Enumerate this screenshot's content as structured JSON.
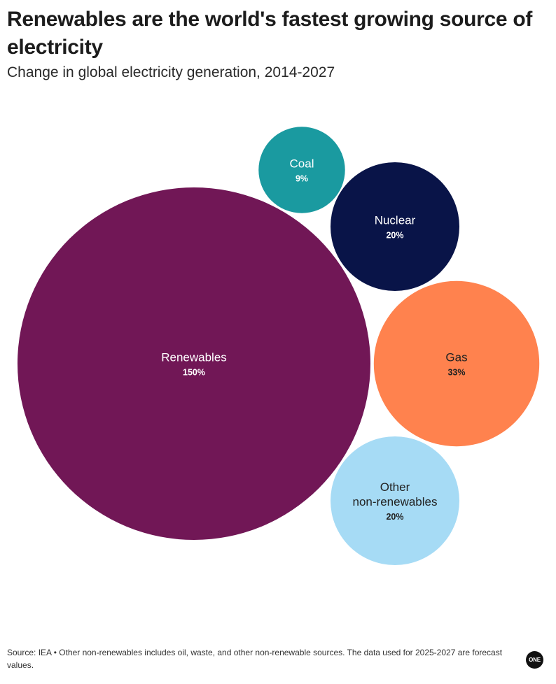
{
  "header": {
    "title": "Renewables are the world's fastest growing source of electricity",
    "subtitle": "Change in global electricity generation, 2014-2027"
  },
  "chart_data": {
    "type": "bubble",
    "title": "Renewables are the world's fastest growing source of electricity",
    "subtitle": "Change in global electricity generation, 2014-2027",
    "unit": "%",
    "series": [
      {
        "name": "Renewables",
        "label_lines": [
          "Renewables"
        ],
        "value": 150,
        "value_label": "150%",
        "color": "#711756",
        "text_color": "#ffffff"
      },
      {
        "name": "Coal",
        "label_lines": [
          "Coal"
        ],
        "value": 9,
        "value_label": "9%",
        "color": "#1a9aa0",
        "text_color": "#ffffff"
      },
      {
        "name": "Nuclear",
        "label_lines": [
          "Nuclear"
        ],
        "value": 20,
        "value_label": "20%",
        "color": "#091448",
        "text_color": "#ffffff"
      },
      {
        "name": "Gas",
        "label_lines": [
          "Gas"
        ],
        "value": 33,
        "value_label": "33%",
        "color": "#ff824e",
        "text_color": "#222222"
      },
      {
        "name": "Other non-renewables",
        "label_lines": [
          "Other",
          "non-renewables"
        ],
        "value": 20,
        "value_label": "20%",
        "color": "#a6dbf5",
        "text_color": "#222222"
      }
    ]
  },
  "footer": {
    "source": "Source: IEA • Other non-renewables includes oil, waste, and other non-renewable sources. The data used for 2025-2027 are forecast values."
  },
  "logo": {
    "text": "ONE"
  }
}
